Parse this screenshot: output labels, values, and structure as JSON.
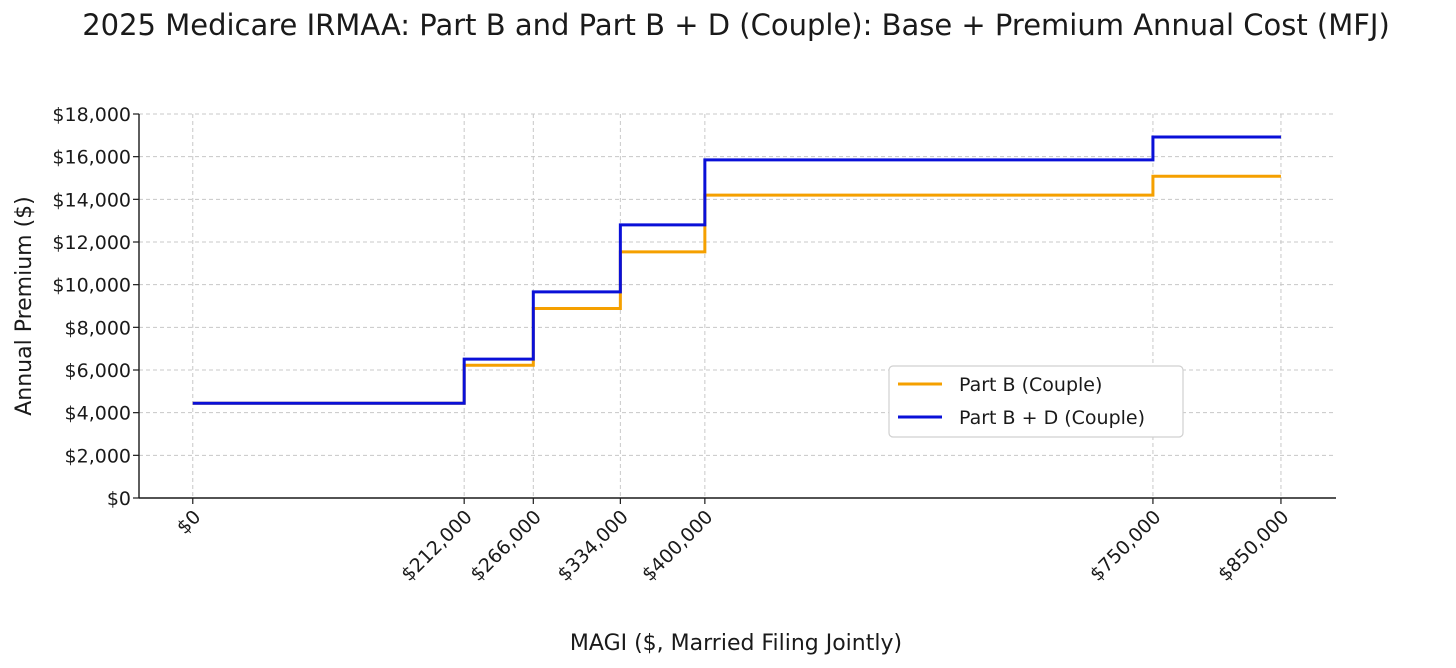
{
  "chart_data": {
    "type": "line",
    "step": "post",
    "title": "2025 Medicare IRMAA: Part B and Part B + D (Couple): Base + Premium Annual Cost (MFJ)",
    "xlabel": "MAGI ($, Married Filing Jointly)",
    "ylabel": "Annual Premium ($)",
    "x": [
      0,
      212000,
      266000,
      334000,
      400000,
      750000,
      850000
    ],
    "x_tick_labels": [
      "$0",
      "$212,000",
      "$266,000",
      "$334,000",
      "$400,000",
      "$750,000",
      "$850,000"
    ],
    "y_ticks": [
      0,
      2000,
      4000,
      6000,
      8000,
      10000,
      12000,
      14000,
      16000,
      18000
    ],
    "y_tick_labels": [
      "$0",
      "$2,000",
      "$4,000",
      "$6,000",
      "$8,000",
      "$10,000",
      "$12,000",
      "$14,000",
      "$16,000",
      "$18,000"
    ],
    "ylim": [
      0,
      18000
    ],
    "xlim": [
      -42000,
      893000
    ],
    "grid": true,
    "legend_position": "lower-right",
    "series": [
      {
        "name": "Part B (Couple)",
        "color": "#f5a000",
        "values": [
          4440,
          6220,
          8880,
          11540,
          14200,
          15080,
          15080
        ]
      },
      {
        "name": "Part B + D (Couple)",
        "color": "#0a10d8",
        "values": [
          4440,
          6510,
          9660,
          12800,
          15850,
          16920,
          16920
        ]
      }
    ]
  }
}
